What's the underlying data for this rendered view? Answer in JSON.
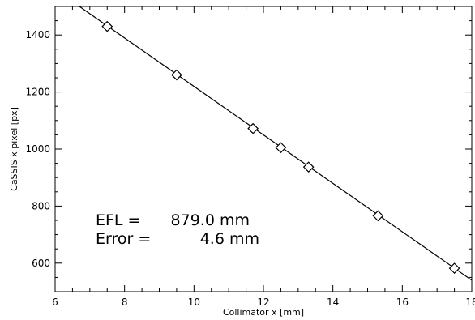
{
  "chart_data": {
    "type": "scatter",
    "title": "",
    "xlabel": "Collimator x [mm]",
    "ylabel": "CaSSIS x pixel [px]",
    "xlim": [
      6,
      18
    ],
    "ylim": [
      500,
      1500
    ],
    "xticks": [
      "6",
      "8",
      "10",
      "12",
      "14",
      "16",
      "18"
    ],
    "yticks": [
      "600",
      "800",
      "1000",
      "1200",
      "1400"
    ],
    "grid": false,
    "legend": "none",
    "series": [
      {
        "marker": "diamond",
        "x": [
          7.5,
          9.5,
          11.7,
          12.5,
          13.3,
          15.3,
          17.5
        ],
        "y": [
          1430,
          1260,
          1072,
          1005,
          937,
          766,
          582
        ]
      }
    ],
    "fit_line": {
      "x": [
        6.7,
        18.0
      ],
      "y": [
        1500,
        540
      ]
    },
    "annotations": [
      {
        "label": "EFL =",
        "value": "879.0 mm"
      },
      {
        "label": "Error =",
        "value": "4.6 mm"
      }
    ]
  }
}
